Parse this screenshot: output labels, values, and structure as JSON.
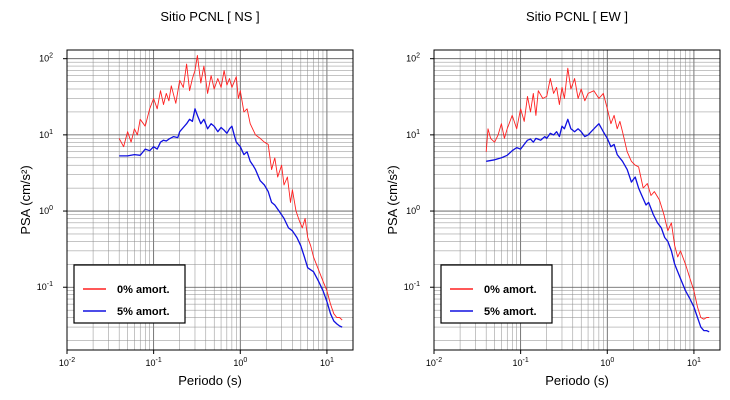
{
  "chart_data": [
    {
      "type": "line",
      "title": "Sitio PCNL [ NS ]",
      "xlabel": "Periodo (s)",
      "ylabel": "PSA (cm/s²)",
      "xscale": "log",
      "yscale": "log",
      "xlim": [
        0.01,
        20
      ],
      "ylim": [
        0.015,
        130
      ],
      "grid": true,
      "legend_position": "bottom-left",
      "x_ticks": [
        {
          "base": "10",
          "exp": "-2",
          "value": 0.01
        },
        {
          "base": "10",
          "exp": "-1",
          "value": 0.1
        },
        {
          "base": "10",
          "exp": "0",
          "value": 1
        },
        {
          "base": "10",
          "exp": "1",
          "value": 10
        }
      ],
      "y_ticks": [
        {
          "base": "10",
          "exp": "-1",
          "value": 0.1
        },
        {
          "base": "10",
          "exp": "0",
          "value": 1
        },
        {
          "base": "10",
          "exp": "1",
          "value": 10
        },
        {
          "base": "10",
          "exp": "2",
          "value": 100
        }
      ],
      "series": [
        {
          "name": "0% amort.",
          "color": "#ff2020",
          "points": [
            [
              0.04,
              9
            ],
            [
              0.045,
              7
            ],
            [
              0.05,
              11
            ],
            [
              0.055,
              8
            ],
            [
              0.06,
              12
            ],
            [
              0.065,
              10
            ],
            [
              0.07,
              16
            ],
            [
              0.08,
              13
            ],
            [
              0.09,
              22
            ],
            [
              0.1,
              30
            ],
            [
              0.11,
              22
            ],
            [
              0.12,
              38
            ],
            [
              0.13,
              25
            ],
            [
              0.14,
              35
            ],
            [
              0.15,
              28
            ],
            [
              0.16,
              44
            ],
            [
              0.18,
              26
            ],
            [
              0.2,
              52
            ],
            [
              0.22,
              42
            ],
            [
              0.24,
              85
            ],
            [
              0.26,
              38
            ],
            [
              0.28,
              55
            ],
            [
              0.3,
              70
            ],
            [
              0.32,
              110
            ],
            [
              0.35,
              48
            ],
            [
              0.38,
              80
            ],
            [
              0.42,
              35
            ],
            [
              0.46,
              60
            ],
            [
              0.5,
              40
            ],
            [
              0.55,
              55
            ],
            [
              0.6,
              42
            ],
            [
              0.65,
              70
            ],
            [
              0.7,
              45
            ],
            [
              0.75,
              55
            ],
            [
              0.8,
              42
            ],
            [
              0.9,
              58
            ],
            [
              0.95,
              30
            ],
            [
              1.0,
              38
            ],
            [
              1.1,
              20
            ],
            [
              1.2,
              22
            ],
            [
              1.3,
              14
            ],
            [
              1.5,
              10
            ],
            [
              1.7,
              9
            ],
            [
              1.9,
              8
            ],
            [
              2.1,
              7.5
            ],
            [
              2.3,
              3.5
            ],
            [
              2.5,
              5
            ],
            [
              2.7,
              2.8
            ],
            [
              3.0,
              4
            ],
            [
              3.2,
              2.2
            ],
            [
              3.5,
              2.8
            ],
            [
              3.8,
              1.3
            ],
            [
              4.0,
              1.9
            ],
            [
              4.4,
              1.0
            ],
            [
              4.8,
              0.75
            ],
            [
              5.2,
              0.6
            ],
            [
              5.6,
              0.8
            ],
            [
              6.0,
              0.45
            ],
            [
              6.5,
              0.35
            ],
            [
              7.0,
              0.25
            ],
            [
              8.0,
              0.17
            ],
            [
              9.0,
              0.12
            ],
            [
              10,
              0.09
            ],
            [
              11,
              0.06
            ],
            [
              12,
              0.045
            ],
            [
              13,
              0.04
            ],
            [
              14,
              0.04
            ],
            [
              15,
              0.037
            ]
          ]
        },
        {
          "name": "5% amort.",
          "color": "#1010e0",
          "points": [
            [
              0.04,
              5.3
            ],
            [
              0.05,
              5.3
            ],
            [
              0.06,
              5.5
            ],
            [
              0.07,
              5.4
            ],
            [
              0.08,
              6.5
            ],
            [
              0.09,
              6.2
            ],
            [
              0.1,
              7
            ],
            [
              0.11,
              6.5
            ],
            [
              0.12,
              8
            ],
            [
              0.13,
              8.5
            ],
            [
              0.14,
              8.3
            ],
            [
              0.15,
              8.8
            ],
            [
              0.17,
              9.5
            ],
            [
              0.19,
              9.2
            ],
            [
              0.2,
              11
            ],
            [
              0.22,
              12.5
            ],
            [
              0.24,
              14
            ],
            [
              0.26,
              16
            ],
            [
              0.28,
              15
            ],
            [
              0.3,
              22
            ],
            [
              0.32,
              18
            ],
            [
              0.35,
              14
            ],
            [
              0.38,
              16
            ],
            [
              0.42,
              12
            ],
            [
              0.46,
              14
            ],
            [
              0.5,
              13
            ],
            [
              0.55,
              11
            ],
            [
              0.6,
              12.5
            ],
            [
              0.65,
              11.5
            ],
            [
              0.7,
              10.5
            ],
            [
              0.75,
              12
            ],
            [
              0.8,
              13
            ],
            [
              0.85,
              10
            ],
            [
              0.9,
              8
            ],
            [
              1.0,
              7
            ],
            [
              1.1,
              5.5
            ],
            [
              1.2,
              6
            ],
            [
              1.3,
              4.5
            ],
            [
              1.4,
              4
            ],
            [
              1.5,
              3.5
            ],
            [
              1.7,
              2.5
            ],
            [
              1.9,
              2.2
            ],
            [
              2.1,
              1.8
            ],
            [
              2.3,
              1.3
            ],
            [
              2.5,
              1.2
            ],
            [
              2.8,
              1
            ],
            [
              3.2,
              0.8
            ],
            [
              3.6,
              0.6
            ],
            [
              4.0,
              0.55
            ],
            [
              4.5,
              0.45
            ],
            [
              5.0,
              0.35
            ],
            [
              5.5,
              0.25
            ],
            [
              6.0,
              0.18
            ],
            [
              7.0,
              0.16
            ],
            [
              8.0,
              0.12
            ],
            [
              9.0,
              0.09
            ],
            [
              10,
              0.065
            ],
            [
              11,
              0.045
            ],
            [
              12,
              0.036
            ],
            [
              13,
              0.033
            ],
            [
              14,
              0.031
            ],
            [
              15,
              0.03
            ]
          ]
        }
      ]
    },
    {
      "type": "line",
      "title": "Sitio PCNL [ EW ]",
      "xlabel": "Periodo (s)",
      "ylabel": "PSA (cm/s²)",
      "xscale": "log",
      "yscale": "log",
      "xlim": [
        0.01,
        20
      ],
      "ylim": [
        0.015,
        130
      ],
      "grid": true,
      "legend_position": "bottom-left",
      "x_ticks": [
        {
          "base": "10",
          "exp": "-2",
          "value": 0.01
        },
        {
          "base": "10",
          "exp": "-1",
          "value": 0.1
        },
        {
          "base": "10",
          "exp": "0",
          "value": 1
        },
        {
          "base": "10",
          "exp": "1",
          "value": 10
        }
      ],
      "y_ticks": [
        {
          "base": "10",
          "exp": "-1",
          "value": 0.1
        },
        {
          "base": "10",
          "exp": "0",
          "value": 1
        },
        {
          "base": "10",
          "exp": "1",
          "value": 10
        },
        {
          "base": "10",
          "exp": "2",
          "value": 100
        }
      ],
      "series": [
        {
          "name": "0% amort.",
          "color": "#ff2020",
          "points": [
            [
              0.04,
              6
            ],
            [
              0.042,
              12
            ],
            [
              0.045,
              9
            ],
            [
              0.05,
              8
            ],
            [
              0.055,
              10
            ],
            [
              0.06,
              14
            ],
            [
              0.065,
              9
            ],
            [
              0.07,
              12
            ],
            [
              0.08,
              18
            ],
            [
              0.09,
              12
            ],
            [
              0.1,
              22
            ],
            [
              0.11,
              15
            ],
            [
              0.12,
              32
            ],
            [
              0.13,
              20
            ],
            [
              0.14,
              35
            ],
            [
              0.15,
              18
            ],
            [
              0.16,
              38
            ],
            [
              0.18,
              30
            ],
            [
              0.2,
              32
            ],
            [
              0.22,
              55
            ],
            [
              0.24,
              35
            ],
            [
              0.26,
              42
            ],
            [
              0.28,
              25
            ],
            [
              0.3,
              42
            ],
            [
              0.32,
              30
            ],
            [
              0.35,
              75
            ],
            [
              0.38,
              40
            ],
            [
              0.42,
              55
            ],
            [
              0.46,
              30
            ],
            [
              0.5,
              40
            ],
            [
              0.55,
              28
            ],
            [
              0.6,
              35
            ],
            [
              0.7,
              38
            ],
            [
              0.8,
              30
            ],
            [
              0.9,
              35
            ],
            [
              1.0,
              22
            ],
            [
              1.1,
              14
            ],
            [
              1.2,
              18
            ],
            [
              1.3,
              12
            ],
            [
              1.4,
              15
            ],
            [
              1.5,
              11
            ],
            [
              1.7,
              6
            ],
            [
              1.9,
              4.5
            ],
            [
              2.1,
              4
            ],
            [
              2.3,
              3.8
            ],
            [
              2.6,
              2
            ],
            [
              2.9,
              2.3
            ],
            [
              3.2,
              1.6
            ],
            [
              3.5,
              1.8
            ],
            [
              4.0,
              1.4
            ],
            [
              4.5,
              0.9
            ],
            [
              5.0,
              0.55
            ],
            [
              5.5,
              0.7
            ],
            [
              6.0,
              0.35
            ],
            [
              6.5,
              0.25
            ],
            [
              7.0,
              0.3
            ],
            [
              8.0,
              0.2
            ],
            [
              9.0,
              0.13
            ],
            [
              10,
              0.09
            ],
            [
              11,
              0.055
            ],
            [
              12,
              0.04
            ],
            [
              13,
              0.038
            ],
            [
              14,
              0.04
            ],
            [
              15,
              0.04
            ]
          ]
        },
        {
          "name": "5% amort.",
          "color": "#1010e0",
          "points": [
            [
              0.04,
              4.5
            ],
            [
              0.05,
              4.7
            ],
            [
              0.06,
              5
            ],
            [
              0.07,
              5.4
            ],
            [
              0.08,
              6.2
            ],
            [
              0.09,
              6.8
            ],
            [
              0.1,
              6.5
            ],
            [
              0.11,
              7.5
            ],
            [
              0.12,
              8.5
            ],
            [
              0.13,
              8.8
            ],
            [
              0.14,
              8
            ],
            [
              0.15,
              9
            ],
            [
              0.17,
              8.5
            ],
            [
              0.19,
              9.5
            ],
            [
              0.2,
              9
            ],
            [
              0.22,
              10.5
            ],
            [
              0.24,
              10
            ],
            [
              0.26,
              11
            ],
            [
              0.28,
              9.5
            ],
            [
              0.3,
              13
            ],
            [
              0.32,
              12
            ],
            [
              0.35,
              16
            ],
            [
              0.38,
              12
            ],
            [
              0.42,
              11
            ],
            [
              0.46,
              12
            ],
            [
              0.5,
              11
            ],
            [
              0.55,
              9.5
            ],
            [
              0.6,
              10
            ],
            [
              0.7,
              12
            ],
            [
              0.8,
              14
            ],
            [
              0.9,
              11
            ],
            [
              1.0,
              9
            ],
            [
              1.1,
              7
            ],
            [
              1.2,
              7.5
            ],
            [
              1.3,
              5.5
            ],
            [
              1.5,
              4.5
            ],
            [
              1.7,
              3.5
            ],
            [
              1.9,
              2.4
            ],
            [
              2.1,
              2.8
            ],
            [
              2.3,
              2
            ],
            [
              2.5,
              1.6
            ],
            [
              2.8,
              1.2
            ],
            [
              3.0,
              1.3
            ],
            [
              3.4,
              0.9
            ],
            [
              3.8,
              0.7
            ],
            [
              4.2,
              0.6
            ],
            [
              4.6,
              0.45
            ],
            [
              5.0,
              0.4
            ],
            [
              5.5,
              0.3
            ],
            [
              6.0,
              0.2
            ],
            [
              7.0,
              0.13
            ],
            [
              8.0,
              0.09
            ],
            [
              9.0,
              0.07
            ],
            [
              10,
              0.055
            ],
            [
              11,
              0.04
            ],
            [
              12,
              0.03
            ],
            [
              13,
              0.027
            ],
            [
              14,
              0.027
            ],
            [
              15,
              0.026
            ]
          ]
        }
      ]
    }
  ]
}
